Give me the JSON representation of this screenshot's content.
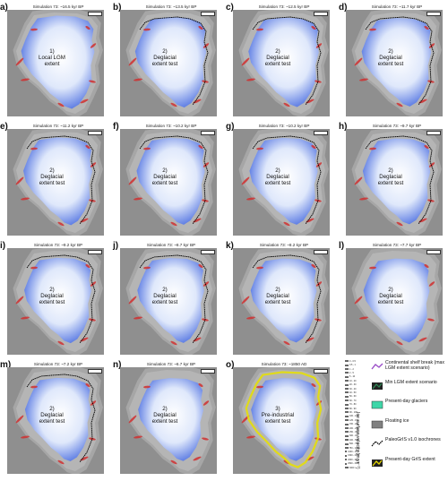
{
  "panels": [
    {
      "letter": "a)",
      "title": "Simulation 73: ~16.5 kyr BP",
      "label": "1)\nLocal LGM\nextent",
      "ice": 0.92,
      "iso": 0
    },
    {
      "letter": "b)",
      "title": "Simulation 73: ~13.5 kyr BP",
      "label": "2)\nDeglacial\nextent test",
      "ice": 0.86,
      "iso": 1
    },
    {
      "letter": "c)",
      "title": "Simulation 73: ~12.5 kyr BP",
      "label": "2)\nDeglacial\nextent test",
      "ice": 0.84,
      "iso": 1
    },
    {
      "letter": "d)",
      "title": "Simulation 73: ~11.7 kyr BP",
      "label": "2)\nDeglacial\nextent test",
      "ice": 0.82,
      "iso": 1
    },
    {
      "letter": "e)",
      "title": "Simulation 73: ~11.2 kyr BP",
      "label": "2)\nDeglacial\nextent test",
      "ice": 0.8,
      "iso": 1
    },
    {
      "letter": "f)",
      "title": "Simulation 73: ~10.2 kyr BP",
      "label": "2)\nDeglacial\nextent test",
      "ice": 0.78,
      "iso": 1
    },
    {
      "letter": "g)",
      "title": "Simulation 73: ~10.2 kyr BP",
      "label": "2)\nDeglacial\nextent test",
      "ice": 0.78,
      "iso": 1
    },
    {
      "letter": "h)",
      "title": "Simulation 73: ~9.7 kyr BP",
      "label": "2)\nDeglacial\nextent test",
      "ice": 0.76,
      "iso": 1
    },
    {
      "letter": "i)",
      "title": "Simulation 73: ~9.2 kyr BP",
      "label": "2)\nDeglacial\nextent test",
      "ice": 0.75,
      "iso": 1
    },
    {
      "letter": "j)",
      "title": "Simulation 73: ~8.7 kyr BP",
      "label": "2)\nDeglacial\nextent test",
      "ice": 0.74,
      "iso": 1
    },
    {
      "letter": "k)",
      "title": "Simulation 73: ~8.2 kyr BP",
      "label": "2)\nDeglacial\nextent test",
      "ice": 0.72,
      "iso": 1
    },
    {
      "letter": "l)",
      "title": "Simulation 73: ~7.7 kyr BP",
      "label": "2)\nDeglacial\nextent test",
      "ice": 0.72,
      "iso": 0
    },
    {
      "letter": "m)",
      "title": "Simulation 73: ~7.2 kyr BP",
      "label": "2)\nDeglacial\nextent test",
      "ice": 0.71,
      "iso": 1
    },
    {
      "letter": "n)",
      "title": "Simulation 73: ~6.7 kyr BP",
      "label": "2)\nDeglacial\nextent test",
      "ice": 0.7,
      "iso": 0
    },
    {
      "letter": "o)",
      "title": "Simulation 73: ~1850 AD",
      "label": "3)\nPre-industrial\nextent test",
      "ice": 0.7,
      "iso": 0,
      "present": true
    }
  ],
  "velocity_legend": {
    "title": "Ice surface velocity (m yr⁻¹)",
    "classes": [
      "0 - 0.5",
      "0.5 - 1",
      "1 - 2",
      "2 - 5",
      "5 - 10",
      "10 - 20",
      "20 - 30",
      "30 - 40",
      "40 - 50",
      "50 - 60",
      "60 - 70",
      "70 - 80",
      "80 - 90",
      "90 - 100",
      "100 - 125",
      "125 - 150",
      "150 - 200",
      "200 - 250",
      "250 - 300",
      "300 - 400",
      "400 - 500",
      "500 - 750",
      "750 - 1000",
      "1000 - 1500",
      "1500 - 2000",
      "2000 - 2500",
      "2500 - 3000",
      "3000 <"
    ],
    "colors": [
      "#2a4fd8",
      "#3a60e0",
      "#4a70e6",
      "#5a80ea",
      "#6a8eee",
      "#7a9cf0",
      "#8aaaf2",
      "#9ab8f4",
      "#aac4f6",
      "#bad0f8",
      "#cadcfa",
      "#dae6fc",
      "#e8effd",
      "#f6f8fe",
      "#fdf2f2",
      "#fbe0e0",
      "#f8cccc",
      "#f4b8b8",
      "#f0a0a0",
      "#ea8888",
      "#e47070",
      "#de5858",
      "#d84040",
      "#cc2e2e",
      "#c01e1e",
      "#b01010",
      "#9a0808",
      "#840000"
    ]
  },
  "symbol_legend": [
    {
      "text": "Continental shelf break (max LGM extent scenario)",
      "icon": "shelf-break-line-icon",
      "color": "#9b4fc8"
    },
    {
      "text": "Min LGM extent scenario",
      "icon": "min-lgm-line-icon",
      "color": "#2e8b57"
    },
    {
      "text": "Present-day glaciers",
      "icon": "glacier-swatch-icon",
      "color": "#3fd6a8"
    },
    {
      "text": "Floating ice",
      "icon": "floating-ice-swatch-icon",
      "color": "#808080"
    },
    {
      "text": "PaleoGrIS v1.0 isochrones",
      "icon": "isochrone-line-icon",
      "color": "#000000"
    },
    {
      "text": "Present-day GrIS extent",
      "icon": "grIS-extent-line-icon",
      "color": "#e6d800"
    }
  ],
  "colors": {
    "ocean": "#8f8f8f",
    "land": "#b5b5b5",
    "ice_light": "#dfe8fb",
    "ice_core": "#ffffff",
    "ice_blue": "#4d6fe0",
    "stream_red": "#d03030",
    "isochrone": "#000000",
    "present_glacier": "#e8e000"
  }
}
